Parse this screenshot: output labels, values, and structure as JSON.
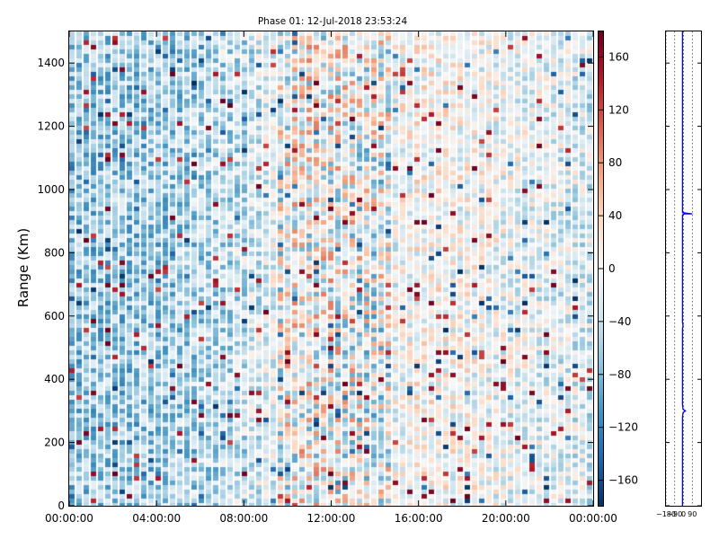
{
  "chart_data": [
    {
      "type": "heatmap",
      "title": "Phase 01: 12-Jul-2018 23:53:24",
      "ylabel": "Range (Km)",
      "xlabel": "",
      "x_ticks": [
        "00:00:00",
        "04:00:00",
        "08:00:00",
        "12:00:00",
        "16:00:00",
        "20:00:00",
        "00:00:00"
      ],
      "x_range_hours": [
        0,
        24
      ],
      "y_ticks": [
        0,
        200,
        400,
        600,
        800,
        1000,
        1200,
        1400
      ],
      "ylim": [
        0,
        1500
      ],
      "value_range": [
        -180,
        180
      ],
      "colormap": [
        "#053061",
        "#2166ac",
        "#4393c3",
        "#92c5de",
        "#d1e5f0",
        "#f7f7f7",
        "#fddbc7",
        "#f4a582",
        "#d6604d",
        "#b2182b",
        "#67001f"
      ],
      "colorbar_ticks": [
        160,
        120,
        80,
        40,
        0,
        -40,
        -80,
        -120,
        -160
      ],
      "trend_by_hour": [
        {
          "hour": 0,
          "mean_phase": -70
        },
        {
          "hour": 4,
          "mean_phase": -65
        },
        {
          "hour": 8,
          "mean_phase": -40
        },
        {
          "hour": 10,
          "mean_phase": 0
        },
        {
          "hour": 12,
          "mean_phase": 0
        },
        {
          "hour": 14,
          "mean_phase": -15
        },
        {
          "hour": 16,
          "mean_phase": 5
        },
        {
          "hour": 20,
          "mean_phase": -10
        },
        {
          "hour": 24,
          "mean_phase": -30
        }
      ],
      "grid": false
    },
    {
      "type": "line",
      "title": "",
      "xlabel": "",
      "ylabel": "",
      "x_ticks": [
        -180,
        -90,
        0,
        90
      ],
      "xlim": [
        -180,
        180
      ],
      "ylim": [
        0,
        1500
      ],
      "series": [
        {
          "points": [
            {
              "x": -10,
              "y": 0
            },
            {
              "x": -10,
              "y": 280
            },
            {
              "x": -5,
              "y": 295
            },
            {
              "x": 20,
              "y": 300
            },
            {
              "x": -5,
              "y": 305
            },
            {
              "x": -10,
              "y": 320
            },
            {
              "x": -10,
              "y": 560
            },
            {
              "x": -5,
              "y": 570
            },
            {
              "x": -10,
              "y": 580
            },
            {
              "x": -10,
              "y": 920
            },
            {
              "x": 5,
              "y": 923
            },
            {
              "x": 90,
              "y": 923
            },
            {
              "x": -10,
              "y": 927
            },
            {
              "x": -10,
              "y": 1500
            }
          ]
        }
      ],
      "grid": true
    }
  ]
}
